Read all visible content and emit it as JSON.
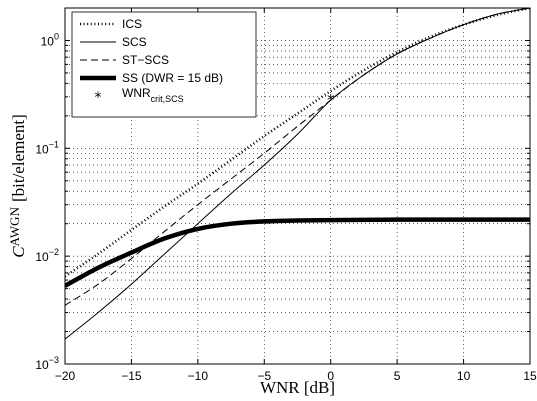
{
  "chart_data": {
    "type": "line",
    "title": "",
    "xlabel": "WNR [dB]",
    "ylabel": {
      "main": "C",
      "superscript": "AWGN",
      "units": "[bit/element]"
    },
    "x_scale": "linear",
    "y_scale": "log",
    "xlim": [
      -20,
      15
    ],
    "ylim": [
      0.001,
      2
    ],
    "x_ticks": [
      -20,
      -15,
      -10,
      -5,
      0,
      5,
      10,
      15
    ],
    "x_tick_labels": [
      "−20",
      "−15",
      "−10",
      "−5",
      "0",
      "5",
      "10",
      "15"
    ],
    "y_ticks": [
      {
        "value": 0.001,
        "base": "10",
        "exp": "−3"
      },
      {
        "value": 0.01,
        "base": "10",
        "exp": "−2"
      },
      {
        "value": 0.1,
        "base": "10",
        "exp": "−1"
      },
      {
        "value": 1,
        "base": "10",
        "exp": "0"
      }
    ],
    "grid": true,
    "legend_position": "top-left",
    "series": [
      {
        "name": "ICS",
        "style": "dotted",
        "color": "#000000",
        "x": [
          -20,
          -17.5,
          -15,
          -12.5,
          -10,
          -7.5,
          -5,
          -2.5,
          0,
          2.5,
          5,
          7.5,
          10,
          12.5,
          15
        ],
        "y": [
          0.0065,
          0.0105,
          0.0175,
          0.029,
          0.047,
          0.078,
          0.13,
          0.21,
          0.34,
          0.53,
          0.78,
          1.08,
          1.4,
          1.72,
          2.0
        ]
      },
      {
        "name": "SCS",
        "style": "solid",
        "color": "#000000",
        "x": [
          -20,
          -17.5,
          -15,
          -12.5,
          -10,
          -7.5,
          -5,
          -2.5,
          0,
          2.5,
          5,
          7.5,
          10,
          12.5,
          15
        ],
        "y": [
          0.0017,
          0.003,
          0.0055,
          0.0105,
          0.02,
          0.038,
          0.07,
          0.135,
          0.28,
          0.48,
          0.75,
          1.05,
          1.4,
          1.75,
          2.0
        ]
      },
      {
        "name": "ST−SCS",
        "style": "dashed",
        "color": "#000000",
        "x": [
          -20,
          -17.5,
          -15,
          -12.5,
          -10,
          -7.5,
          -5,
          -2.5,
          0,
          2.5,
          5,
          7.5,
          10,
          12.5,
          15
        ],
        "y": [
          0.0035,
          0.0055,
          0.0095,
          0.017,
          0.03,
          0.052,
          0.09,
          0.16,
          0.28,
          0.48,
          0.75,
          1.05,
          1.4,
          1.75,
          2.0
        ]
      },
      {
        "name": "SS (DWR = 15 dB)",
        "style": "thick",
        "color": "#000000",
        "x": [
          -20,
          -17.5,
          -15,
          -12.5,
          -10,
          -7.5,
          -5,
          -2.5,
          0,
          2.5,
          5,
          7.5,
          10,
          12.5,
          15
        ],
        "y": [
          0.0053,
          0.0078,
          0.0108,
          0.0146,
          0.0179,
          0.02,
          0.021,
          0.0214,
          0.0216,
          0.0217,
          0.0218,
          0.0218,
          0.0218,
          0.0218,
          0.0218
        ]
      }
    ],
    "markers": [
      {
        "name": "WNR",
        "name_sub": "crit,SCS",
        "symbol": "*",
        "x": [
          0
        ],
        "y": [
          0.28
        ]
      }
    ]
  }
}
